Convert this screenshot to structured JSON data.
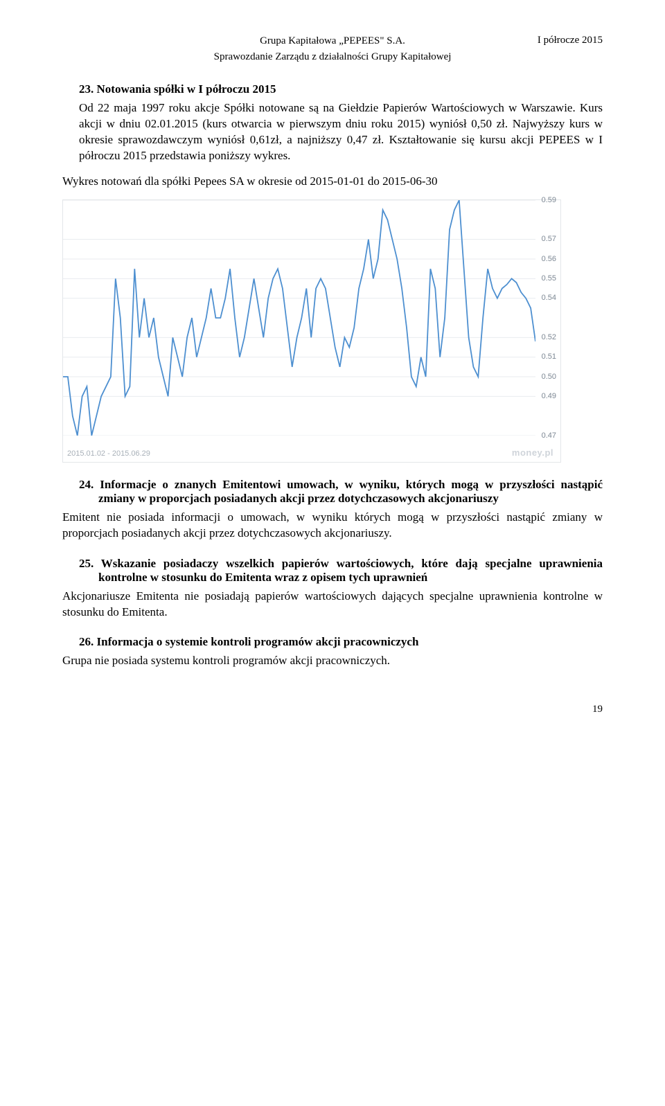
{
  "header": {
    "company": "Grupa Kapitałowa „PEPEES\" S.A.",
    "report": "Sprawozdanie Zarządu z działalności Grupy Kapitałowej",
    "period": "I półrocze 2015"
  },
  "section23": {
    "title": "23. Notowania spółki w I półroczu 2015",
    "p1": "Od 22 maja 1997 roku akcje Spółki notowane są na Giełdzie Papierów Wartościowych w Warszawie. Kurs akcji w dniu 02.01.2015 (kurs otwarcia w pierwszym dniu roku 2015) wyniósł 0,50 zł. Najwyższy kurs w okresie sprawozdawczym wyniósł 0,61zł, a najniższy 0,47 zł. Kształtowanie się kursu akcji PEPEES w I półroczu 2015 przedstawia poniższy wykres.",
    "p2": "Wykres notowań dla spółki Pepees SA w okresie od 2015-01-01 do 2015-06-30"
  },
  "chart": {
    "type": "line",
    "y_min": 0.47,
    "y_max": 0.59,
    "y_ticks": [
      0.47,
      0.49,
      0.5,
      0.51,
      0.52,
      0.54,
      0.55,
      0.56,
      0.57,
      0.59
    ],
    "grid_color": "#e8ebef",
    "line_color": "#4d8fd0",
    "background": "#ffffff",
    "footer_label": "2015.01.02 - 2015.06.29",
    "watermark": "money.pl",
    "series": [
      0.5,
      0.5,
      0.48,
      0.47,
      0.49,
      0.495,
      0.47,
      0.48,
      0.49,
      0.495,
      0.5,
      0.55,
      0.53,
      0.49,
      0.495,
      0.555,
      0.52,
      0.54,
      0.52,
      0.53,
      0.51,
      0.5,
      0.49,
      0.52,
      0.51,
      0.5,
      0.52,
      0.53,
      0.51,
      0.52,
      0.53,
      0.545,
      0.53,
      0.53,
      0.54,
      0.555,
      0.53,
      0.51,
      0.52,
      0.535,
      0.55,
      0.535,
      0.52,
      0.54,
      0.55,
      0.555,
      0.545,
      0.525,
      0.505,
      0.52,
      0.53,
      0.545,
      0.52,
      0.545,
      0.55,
      0.545,
      0.53,
      0.515,
      0.505,
      0.52,
      0.515,
      0.525,
      0.545,
      0.555,
      0.57,
      0.55,
      0.56,
      0.585,
      0.58,
      0.57,
      0.56,
      0.545,
      0.525,
      0.5,
      0.495,
      0.51,
      0.5,
      0.555,
      0.545,
      0.51,
      0.53,
      0.575,
      0.585,
      0.59,
      0.555,
      0.52,
      0.505,
      0.5,
      0.53,
      0.555,
      0.545,
      0.54,
      0.545,
      0.547,
      0.55,
      0.548,
      0.543,
      0.54,
      0.535,
      0.518
    ]
  },
  "section24": {
    "title": "24. Informacje o znanych Emitentowi umowach, w wyniku, których mogą w przyszłości nastąpić zmiany w proporcjach posiadanych akcji przez dotychczasowych akcjonariuszy",
    "body": "Emitent nie posiada informacji o umowach, w wyniku których mogą w przyszłości nastąpić zmiany w proporcjach posiadanych akcji przez dotychczasowych akcjonariuszy."
  },
  "section25": {
    "title": "25. Wskazanie posiadaczy wszelkich papierów wartościowych, które dają specjalne uprawnienia kontrolne w stosunku do Emitenta wraz z opisem tych uprawnień",
    "body": "Akcjonariusze Emitenta nie posiadają papierów wartościowych dających specjalne uprawnienia kontrolne w stosunku do Emitenta."
  },
  "section26": {
    "title": "26. Informacja o systemie kontroli programów akcji pracowniczych",
    "body": "Grupa nie posiada systemu kontroli programów akcji pracowniczych."
  },
  "page_number": "19"
}
